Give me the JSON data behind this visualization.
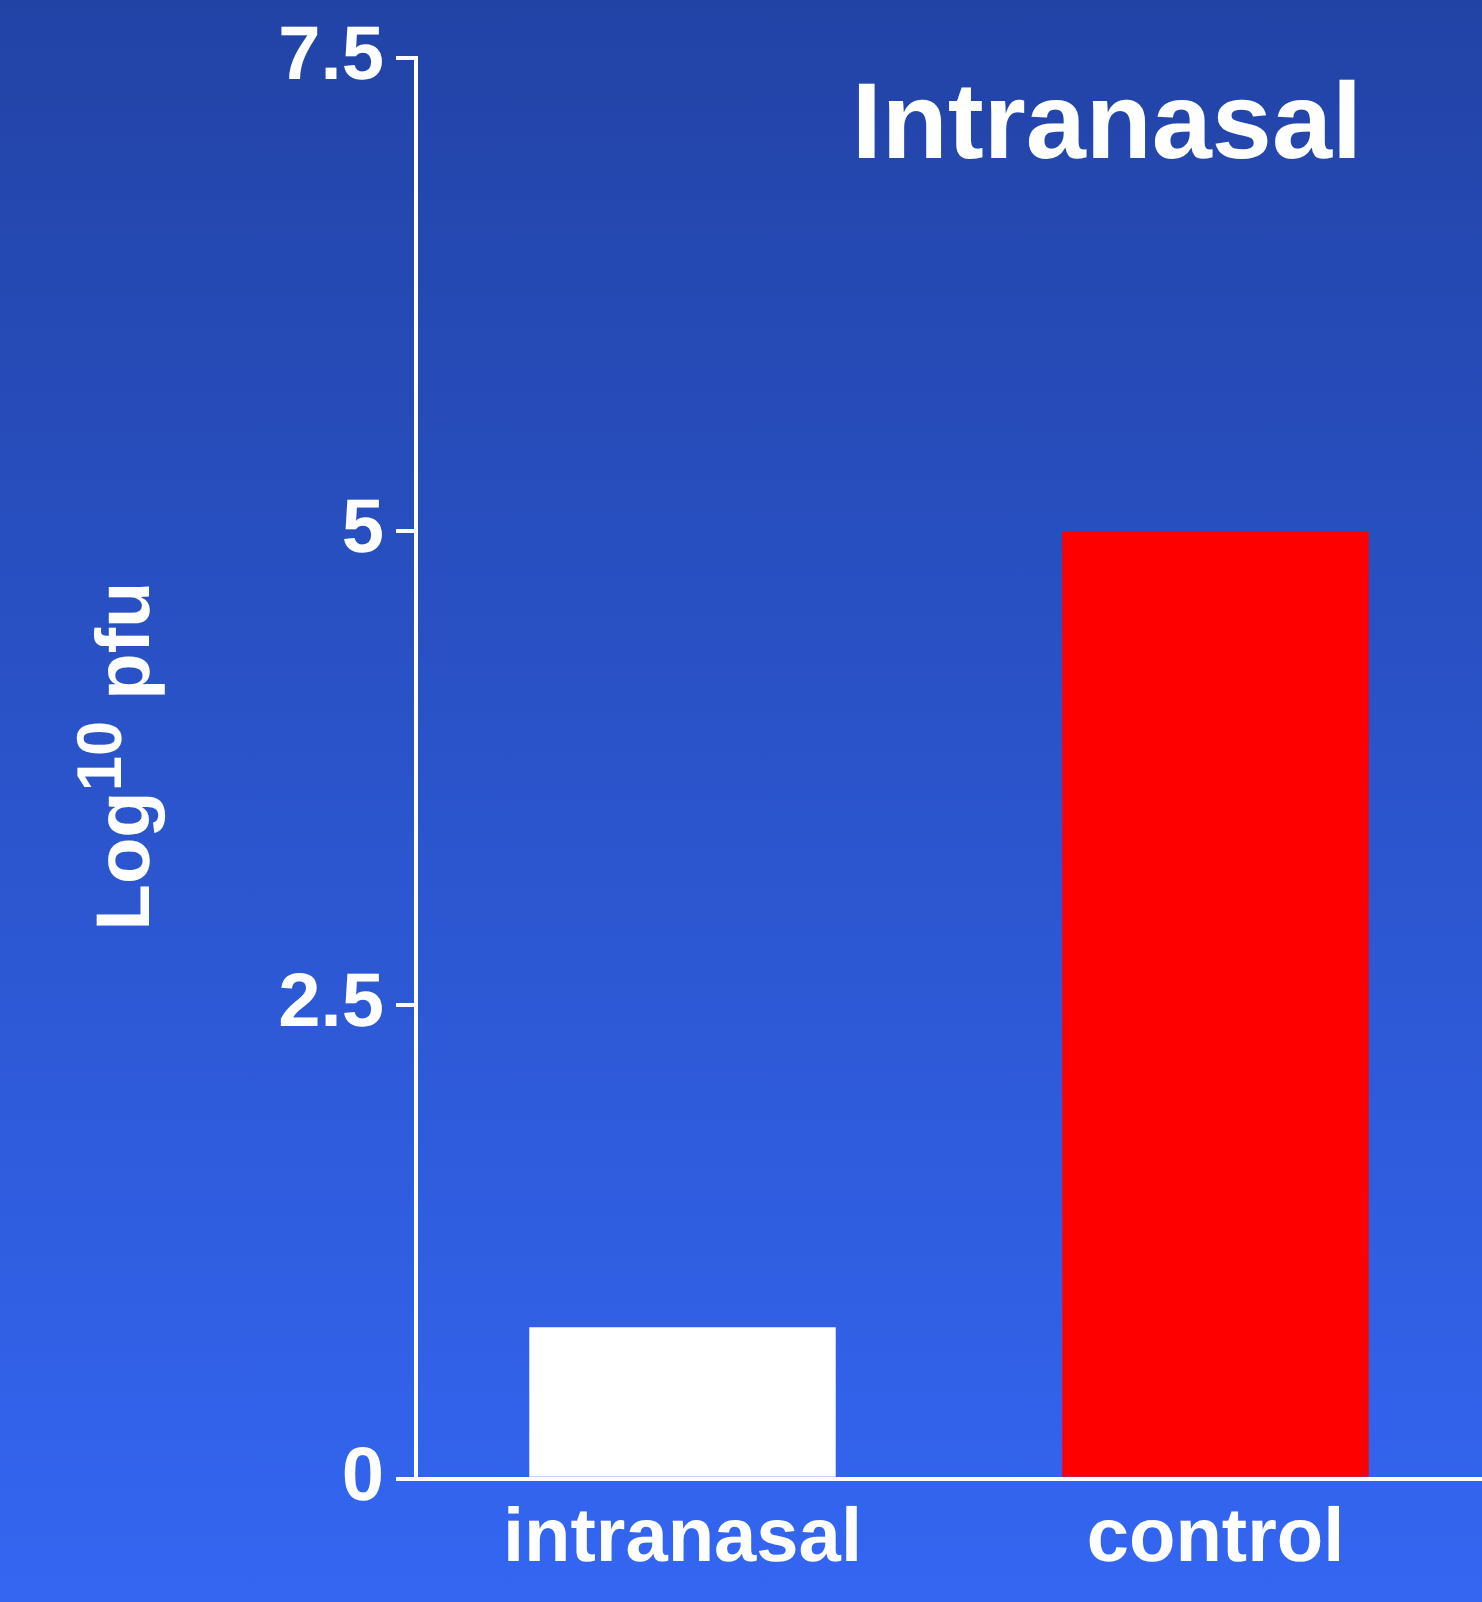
{
  "chart_data": {
    "type": "bar",
    "title": "Intranasal",
    "ylabel": "Log$^{10}$ pfu",
    "categories": [
      "intranasal",
      "control"
    ],
    "values": [
      0.8,
      5
    ],
    "colors": [
      "#ffffff",
      "#ff0000"
    ],
    "ylim": [
      0,
      7.5
    ],
    "yticks": [
      0,
      2.5,
      5,
      7.5
    ],
    "grid": false,
    "legend": false
  }
}
